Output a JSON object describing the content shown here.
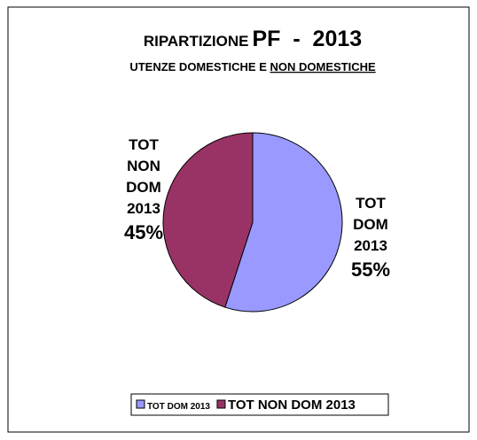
{
  "chart_data": {
    "type": "pie",
    "title": [
      "RIPARTIZIONE",
      "PF  -  2013"
    ],
    "subtitle": [
      "UTENZE DOMESTICHE E ",
      "NON DOMESTICHE"
    ],
    "categories": [
      "TOT DOM 2013",
      "TOT NON DOM 2013"
    ],
    "values": [
      55,
      45
    ],
    "value_labels": [
      "55%",
      "45%"
    ],
    "colors": [
      "#9999ff",
      "#993366"
    ],
    "legend": "bottom"
  }
}
